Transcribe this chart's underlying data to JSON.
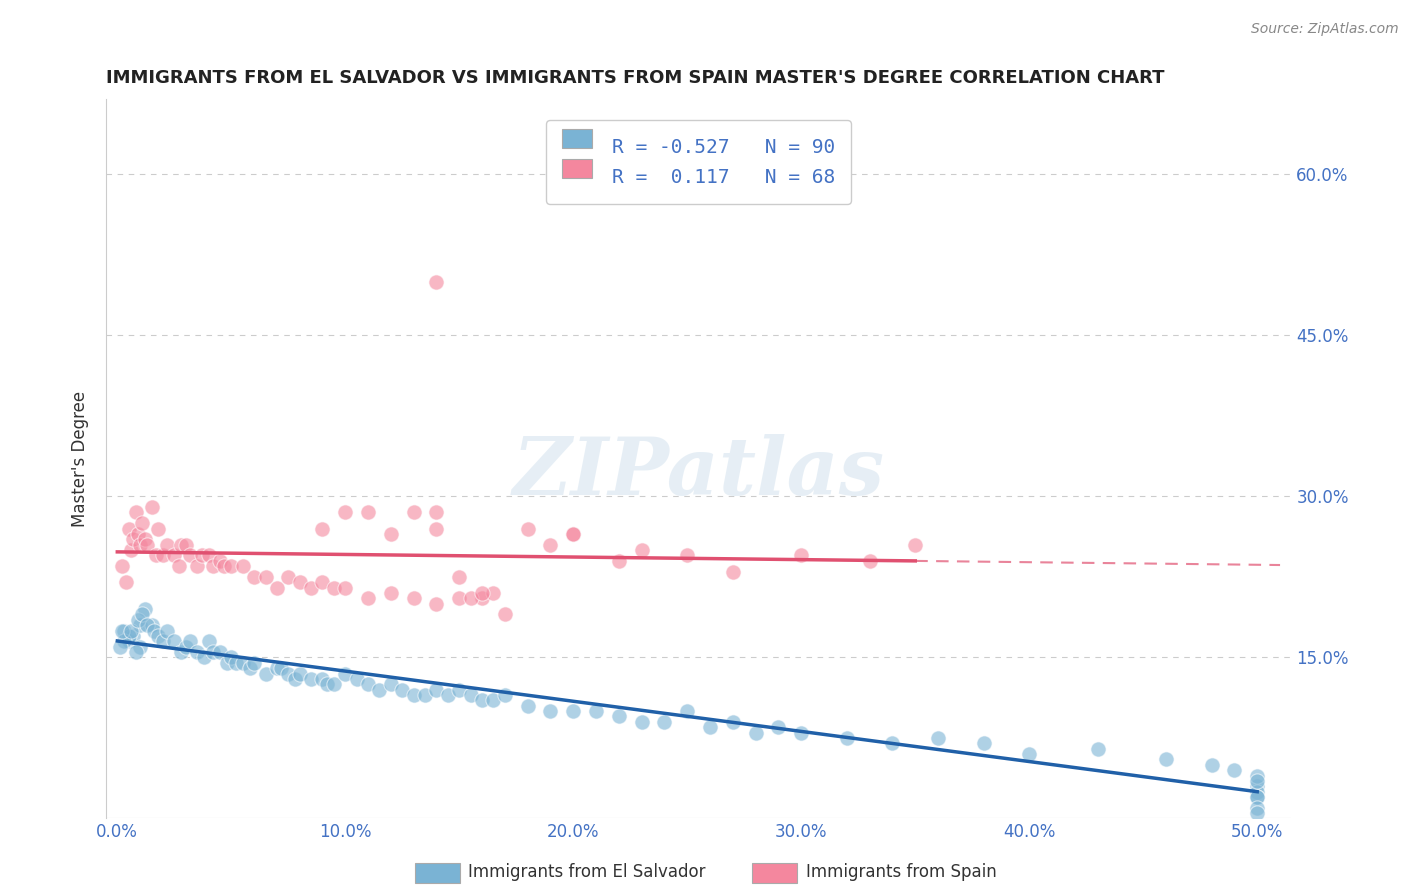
{
  "title": "IMMIGRANTS FROM EL SALVADOR VS IMMIGRANTS FROM SPAIN MASTER'S DEGREE CORRELATION CHART",
  "source": "Source: ZipAtlas.com",
  "ylabel": "Master's Degree",
  "xlabel": "",
  "xlim": [
    -0.005,
    0.515
  ],
  "ylim": [
    0.0,
    0.67
  ],
  "xtick_labels": [
    "0.0%",
    "10.0%",
    "20.0%",
    "30.0%",
    "40.0%",
    "50.0%"
  ],
  "ytick_labels": [
    "15.0%",
    "30.0%",
    "45.0%",
    "60.0%"
  ],
  "ytick_positions": [
    0.15,
    0.3,
    0.45,
    0.6
  ],
  "xtick_positions": [
    0.0,
    0.1,
    0.2,
    0.3,
    0.4,
    0.5
  ],
  "legend_label_blue": "Immigrants from El Salvador",
  "legend_label_pink": "Immigrants from Spain",
  "R_blue": -0.527,
  "N_blue": 90,
  "R_pink": 0.117,
  "N_pink": 68,
  "blue_color": "#7ab3d4",
  "pink_color": "#f4879e",
  "blue_line_color": "#2060a8",
  "pink_line_color": "#e05070",
  "watermark": "ZIPatlas",
  "background_color": "#ffffff",
  "grid_color": "#cccccc",
  "title_color": "#222222",
  "tick_label_color": "#4472c4",
  "blue_scatter_x": [
    0.003,
    0.005,
    0.007,
    0.01,
    0.01,
    0.012,
    0.015,
    0.008,
    0.005,
    0.003,
    0.002,
    0.001,
    0.006,
    0.009,
    0.011,
    0.013,
    0.016,
    0.018,
    0.02,
    0.022,
    0.025,
    0.028,
    0.03,
    0.032,
    0.035,
    0.038,
    0.04,
    0.042,
    0.045,
    0.048,
    0.05,
    0.052,
    0.055,
    0.058,
    0.06,
    0.065,
    0.07,
    0.072,
    0.075,
    0.078,
    0.08,
    0.085,
    0.09,
    0.092,
    0.095,
    0.1,
    0.105,
    0.11,
    0.115,
    0.12,
    0.125,
    0.13,
    0.135,
    0.14,
    0.145,
    0.15,
    0.155,
    0.16,
    0.165,
    0.17,
    0.18,
    0.19,
    0.2,
    0.21,
    0.22,
    0.23,
    0.24,
    0.25,
    0.26,
    0.27,
    0.28,
    0.29,
    0.3,
    0.32,
    0.34,
    0.36,
    0.38,
    0.4,
    0.43,
    0.46,
    0.48,
    0.49,
    0.5,
    0.5,
    0.5,
    0.5,
    0.5,
    0.5,
    0.5,
    0.5
  ],
  "blue_scatter_y": [
    0.175,
    0.165,
    0.17,
    0.18,
    0.16,
    0.195,
    0.18,
    0.155,
    0.17,
    0.165,
    0.175,
    0.16,
    0.175,
    0.185,
    0.19,
    0.18,
    0.175,
    0.17,
    0.165,
    0.175,
    0.165,
    0.155,
    0.16,
    0.165,
    0.155,
    0.15,
    0.165,
    0.155,
    0.155,
    0.145,
    0.15,
    0.145,
    0.145,
    0.14,
    0.145,
    0.135,
    0.14,
    0.14,
    0.135,
    0.13,
    0.135,
    0.13,
    0.13,
    0.125,
    0.125,
    0.135,
    0.13,
    0.125,
    0.12,
    0.125,
    0.12,
    0.115,
    0.115,
    0.12,
    0.115,
    0.12,
    0.115,
    0.11,
    0.11,
    0.115,
    0.105,
    0.1,
    0.1,
    0.1,
    0.095,
    0.09,
    0.09,
    0.1,
    0.085,
    0.09,
    0.08,
    0.085,
    0.08,
    0.075,
    0.07,
    0.075,
    0.07,
    0.06,
    0.065,
    0.055,
    0.05,
    0.045,
    0.03,
    0.04,
    0.025,
    0.035,
    0.02,
    0.02,
    0.01,
    0.005
  ],
  "pink_scatter_x": [
    0.002,
    0.004,
    0.005,
    0.006,
    0.007,
    0.008,
    0.009,
    0.01,
    0.011,
    0.012,
    0.013,
    0.015,
    0.017,
    0.018,
    0.02,
    0.022,
    0.025,
    0.027,
    0.028,
    0.03,
    0.032,
    0.035,
    0.037,
    0.04,
    0.042,
    0.045,
    0.047,
    0.05,
    0.055,
    0.06,
    0.065,
    0.07,
    0.075,
    0.08,
    0.085,
    0.09,
    0.095,
    0.1,
    0.11,
    0.12,
    0.13,
    0.14,
    0.15,
    0.16,
    0.165,
    0.17,
    0.14,
    0.15,
    0.1,
    0.12,
    0.2,
    0.13,
    0.14,
    0.155,
    0.16,
    0.18,
    0.19,
    0.2,
    0.22,
    0.23,
    0.25,
    0.27,
    0.3,
    0.33,
    0.35,
    0.14,
    0.11,
    0.09
  ],
  "pink_scatter_y": [
    0.235,
    0.22,
    0.27,
    0.25,
    0.26,
    0.285,
    0.265,
    0.255,
    0.275,
    0.26,
    0.255,
    0.29,
    0.245,
    0.27,
    0.245,
    0.255,
    0.245,
    0.235,
    0.255,
    0.255,
    0.245,
    0.235,
    0.245,
    0.245,
    0.235,
    0.24,
    0.235,
    0.235,
    0.235,
    0.225,
    0.225,
    0.215,
    0.225,
    0.22,
    0.215,
    0.22,
    0.215,
    0.215,
    0.205,
    0.21,
    0.205,
    0.2,
    0.205,
    0.205,
    0.21,
    0.19,
    0.285,
    0.225,
    0.285,
    0.265,
    0.265,
    0.285,
    0.27,
    0.205,
    0.21,
    0.27,
    0.255,
    0.265,
    0.24,
    0.25,
    0.245,
    0.23,
    0.245,
    0.24,
    0.255,
    0.5,
    0.285,
    0.27
  ]
}
